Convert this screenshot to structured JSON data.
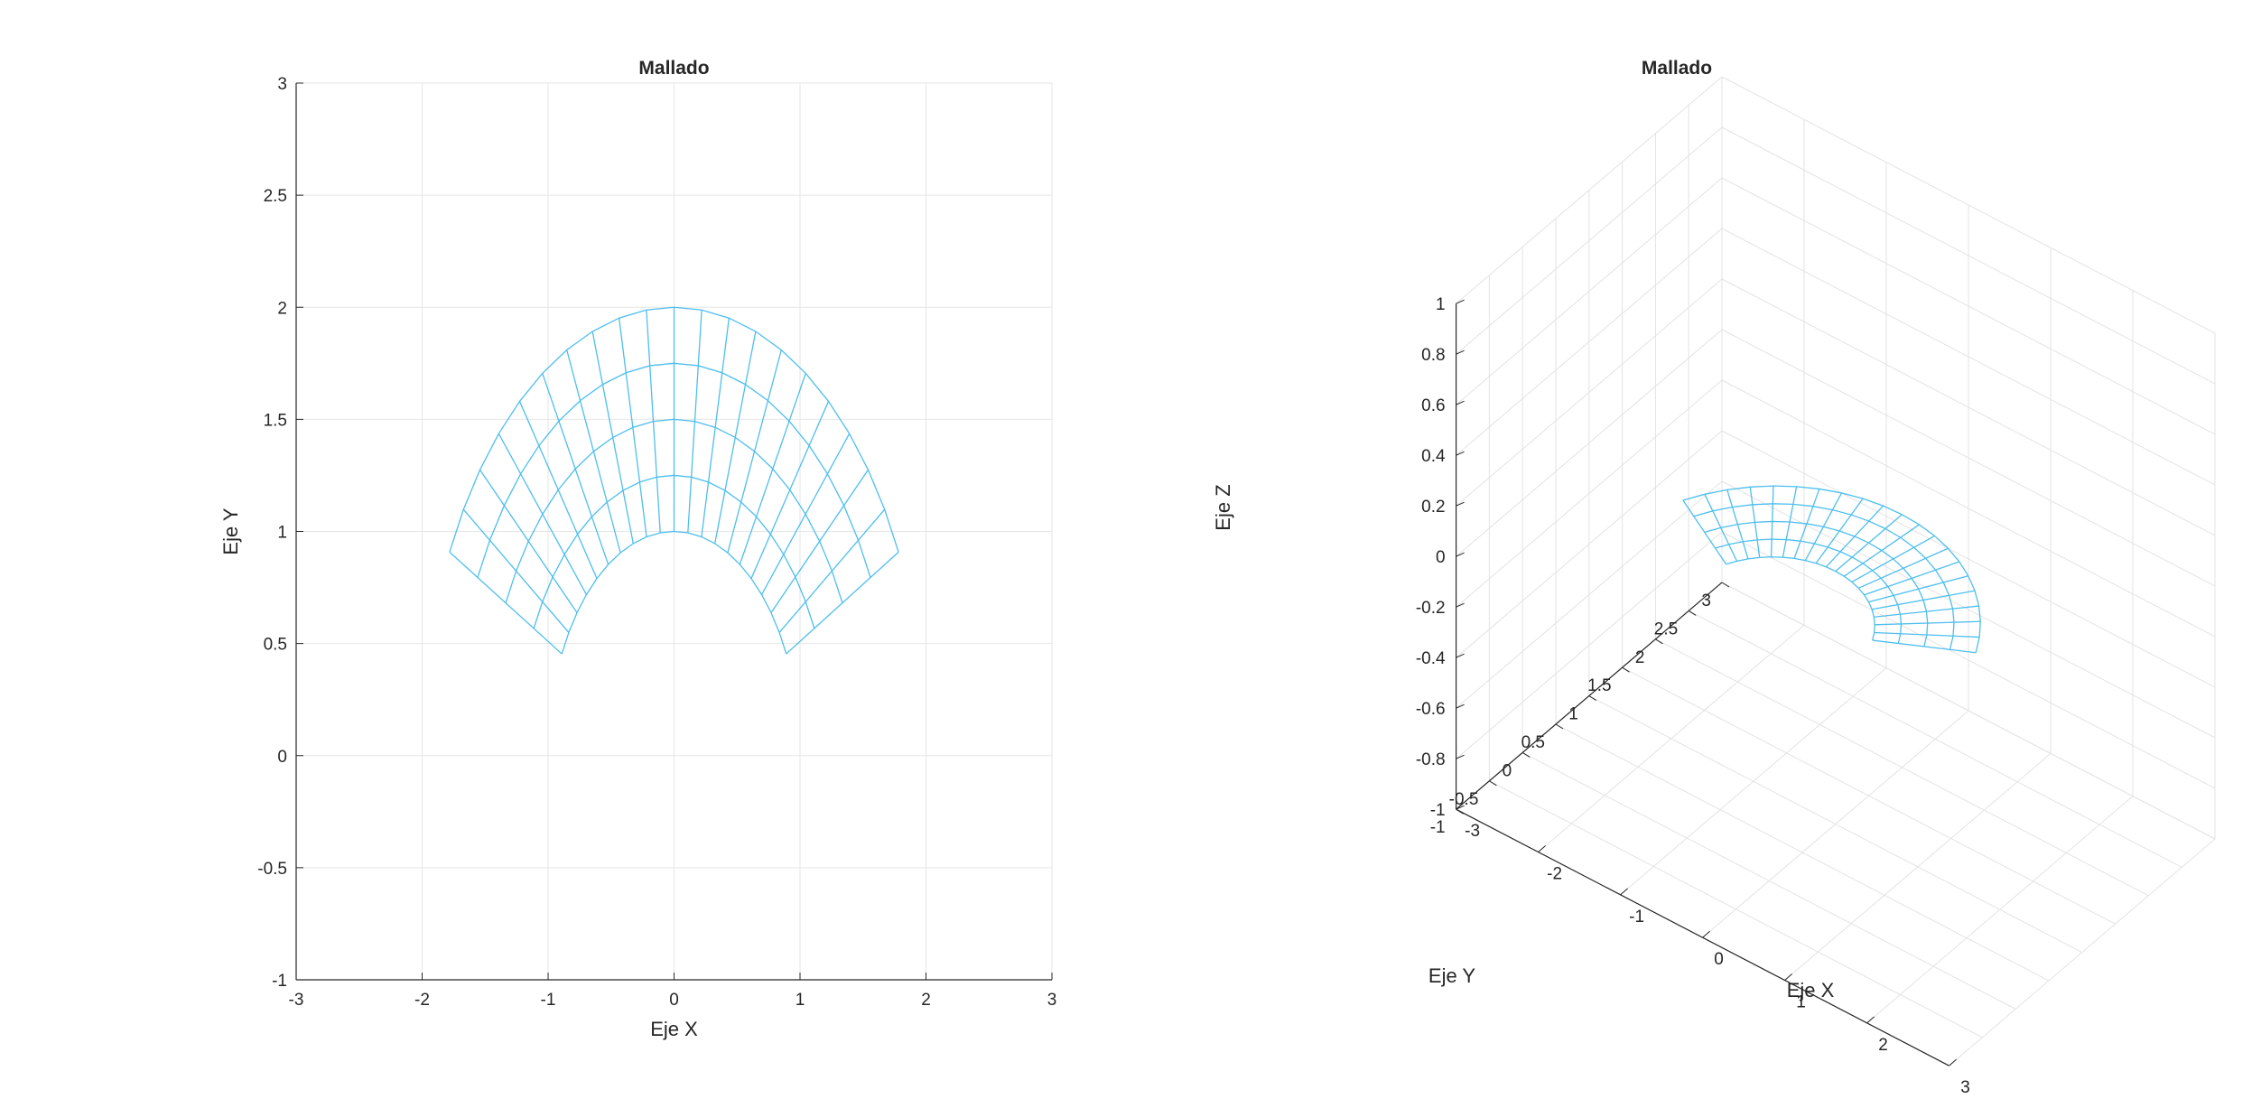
{
  "chart_data": [
    {
      "type": "mesh",
      "view": "2d",
      "title": "Mallado",
      "xlabel": "Eje X",
      "ylabel": "Eje Y",
      "xlim": [
        -3,
        3
      ],
      "ylim": [
        -1,
        3
      ],
      "xticks": [
        "-3",
        "-2",
        "-1",
        "0",
        "1",
        "2",
        "3"
      ],
      "yticks": [
        "-1",
        "-0.5",
        "0",
        "0.5",
        "1",
        "1.5",
        "2",
        "2.5",
        "3"
      ],
      "grid": true,
      "mesh_color": "#4DBEEE",
      "mesh": {
        "shape": "annular sector",
        "center": [
          0,
          0
        ],
        "r_inner": 1,
        "r_outer": 2,
        "theta_start_deg": 27,
        "theta_end_deg": 153,
        "radial_divisions": 4,
        "angular_divisions": 20
      }
    },
    {
      "type": "mesh",
      "view": "3d",
      "title": "Mallado",
      "xlabel": "Eje X",
      "ylabel": "Eje Y",
      "zlabel": "Eje Z",
      "xlim": [
        -3,
        3
      ],
      "ylim": [
        -1,
        3
      ],
      "zlim": [
        -1,
        1
      ],
      "xticks": [
        "-3",
        "-2",
        "-1",
        "0",
        "1",
        "2",
        "3"
      ],
      "yticks": [
        "-1",
        "-0.5",
        "0",
        "0.5",
        "1",
        "1.5",
        "2",
        "2.5",
        "3"
      ],
      "zticks": [
        "-1",
        "-0.8",
        "-0.6",
        "-0.4",
        "-0.2",
        "0",
        "0.2",
        "0.4",
        "0.6",
        "0.8",
        "1"
      ],
      "grid": true,
      "mesh_color": "#4DBEEE",
      "mesh": {
        "shape": "annular sector",
        "center": [
          0,
          0
        ],
        "r_inner": 1,
        "r_outer": 2,
        "theta_start_deg": 27,
        "theta_end_deg": 153,
        "radial_divisions": 4,
        "angular_divisions": 20,
        "z": 0
      }
    }
  ]
}
